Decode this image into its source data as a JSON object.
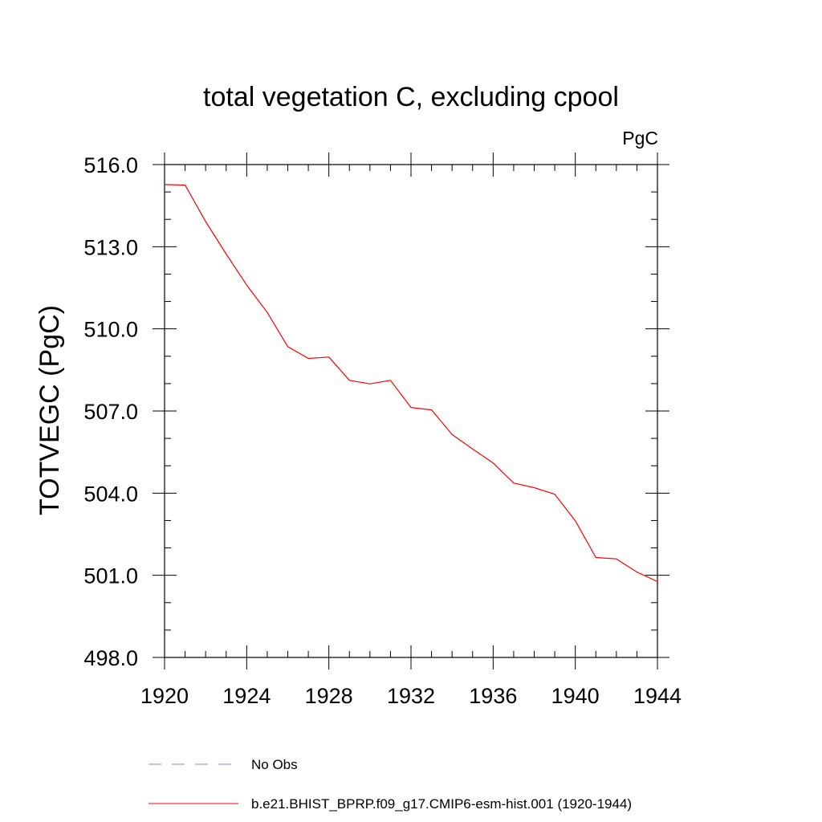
{
  "chart_data": {
    "type": "line",
    "title": "total vegetation C, excluding cpool",
    "units_label": "PgC",
    "xlabel": "",
    "ylabel": "TOTVEGC  (PgC)",
    "xlim": [
      1920,
      1944
    ],
    "ylim": [
      498.0,
      516.0
    ],
    "x_ticks": [
      1920,
      1924,
      1928,
      1932,
      1936,
      1940,
      1944
    ],
    "x_tick_labels": [
      "1920",
      "1924",
      "1928",
      "1932",
      "1936",
      "1940",
      "1944"
    ],
    "x_minor_step": 1,
    "y_ticks": [
      498.0,
      501.0,
      504.0,
      507.0,
      510.0,
      513.0,
      516.0
    ],
    "y_tick_labels": [
      "498.0",
      "501.0",
      "504.0",
      "507.0",
      "510.0",
      "513.0",
      "516.0"
    ],
    "y_minor_step": 1.0,
    "grid": false,
    "series": [
      {
        "name": "b.e21.BHIST_BPRP.f09_g17.CMIP6-esm-hist.001 (1920-1944)",
        "color": "#ff0000",
        "dash": "solid",
        "x": [
          1920,
          1921,
          1922,
          1923,
          1924,
          1925,
          1926,
          1927,
          1928,
          1929,
          1930,
          1931,
          1932,
          1933,
          1934,
          1935,
          1936,
          1937,
          1938,
          1939,
          1940,
          1941,
          1942,
          1943,
          1944
        ],
        "values": [
          515.27,
          515.25,
          513.92,
          512.73,
          511.6,
          510.6,
          509.35,
          508.92,
          508.97,
          508.12,
          507.99,
          508.12,
          507.13,
          507.04,
          506.14,
          505.61,
          505.1,
          504.37,
          504.2,
          503.96,
          502.99,
          501.65,
          501.6,
          501.12,
          500.77
        ]
      }
    ],
    "legend": {
      "placement": "bottom",
      "entries": [
        {
          "label": "No Obs",
          "color": "#8080ff",
          "dash": "dashed"
        },
        {
          "label": "b.e21.BHIST_BPRP.f09_g17.CMIP6-esm-hist.001 (1920-1944)",
          "color": "#ff0000",
          "dash": "solid"
        }
      ]
    }
  }
}
